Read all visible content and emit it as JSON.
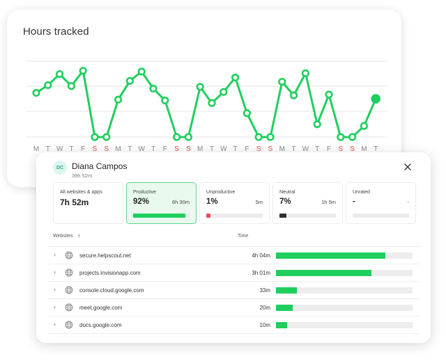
{
  "chart": {
    "title": "Hours tracked",
    "chart_data": {
      "type": "line",
      "x": [
        "M",
        "T",
        "W",
        "T",
        "F",
        "S",
        "S",
        "M",
        "T",
        "W",
        "T",
        "F",
        "S",
        "S",
        "M",
        "T",
        "W",
        "T",
        "F",
        "S",
        "S",
        "M",
        "T",
        "W",
        "T",
        "F",
        "S",
        "S",
        "M",
        "T"
      ],
      "values": [
        5.2,
        6.1,
        7.4,
        6.0,
        7.8,
        0,
        0,
        4.4,
        6.6,
        7.7,
        5.7,
        4.3,
        0,
        0,
        5.9,
        4.0,
        5.3,
        7.0,
        2.8,
        0,
        0,
        6.5,
        4.9,
        7.5,
        1.5,
        5.0,
        0,
        0,
        1.3,
        4.5
      ],
      "weekend_highlight": [
        "S"
      ],
      "grid": true,
      "ylim": [
        0,
        9
      ],
      "colors": {
        "line": "#1ecf5d",
        "weekend_label": "#d84a4a",
        "weekday_label": "#8a8a8a"
      }
    }
  },
  "detail": {
    "avatar_initials": "DC",
    "user_name": "Diana Campos",
    "user_total": "39h 52m",
    "stats": [
      {
        "label": "All websites & apps",
        "big": "7h 52m"
      },
      {
        "label": "Productive",
        "pct": "92%",
        "value": "6h 30m",
        "fill": 0.92,
        "color": "#1ecf5d",
        "selected": true
      },
      {
        "label": "Unproductive",
        "pct": "1%",
        "value": "5m",
        "fill": 0.08,
        "color": "#e84b5f"
      },
      {
        "label": "Neutral",
        "pct": "7%",
        "value": "1h 5m",
        "fill": 0.12,
        "color": "#2f2f2f"
      },
      {
        "label": "Unrated",
        "pct": "-",
        "value": "-",
        "fill": 0,
        "color": "#cccccc"
      }
    ],
    "columns": {
      "websites": "Websites",
      "time": "Time"
    },
    "rows": [
      {
        "site": "secure.helpscout.net",
        "time": "4h 04m",
        "fill": 0.8
      },
      {
        "site": "projects.invisionapp.com",
        "time": "3h 01m",
        "fill": 0.7
      },
      {
        "site": "console.cloud.google.com",
        "time": "33m",
        "fill": 0.155
      },
      {
        "site": "meet.google.com",
        "time": "20m",
        "fill": 0.12
      },
      {
        "site": "docs.google.com",
        "time": "10m",
        "fill": 0.08
      }
    ],
    "colors": {
      "bar": "#1ecf5d",
      "selected_bg": "#e9f9ee"
    }
  }
}
